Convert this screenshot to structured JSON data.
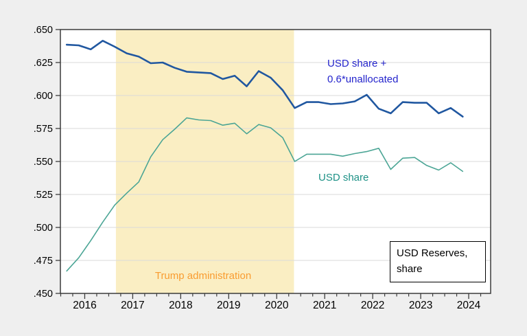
{
  "chart_data": {
    "type": "line",
    "x_axis": {
      "tick_labels": [
        "2016",
        "2017",
        "2018",
        "2019",
        "2020",
        "2021",
        "2022",
        "2023",
        "2024"
      ],
      "tick_values": [
        2016,
        2017,
        2018,
        2019,
        2020,
        2021,
        2022,
        2023,
        2024
      ],
      "minor_tick_step_years": 0.25,
      "xlim": [
        2015.493,
        2024.457
      ]
    },
    "y_axis": {
      "tick_labels": [
        ".450",
        ".475",
        ".500",
        ".525",
        ".550",
        ".575",
        ".600",
        ".625",
        ".650"
      ],
      "tick_values": [
        0.45,
        0.475,
        0.5,
        0.525,
        0.55,
        0.575,
        0.6,
        0.625,
        0.65
      ],
      "ylim": [
        0.45,
        0.65
      ]
    },
    "grid": true,
    "legend_position": "inline-annotations",
    "quarters": [
      "2015Q3",
      "2015Q4",
      "2016Q1",
      "2016Q2",
      "2016Q3",
      "2016Q4",
      "2017Q1",
      "2017Q2",
      "2017Q3",
      "2017Q4",
      "2018Q1",
      "2018Q2",
      "2018Q3",
      "2018Q4",
      "2019Q1",
      "2019Q2",
      "2019Q3",
      "2019Q4",
      "2020Q1",
      "2020Q2",
      "2020Q3",
      "2020Q4",
      "2021Q1",
      "2021Q2",
      "2021Q3",
      "2021Q4",
      "2022Q1",
      "2022Q2",
      "2022Q3",
      "2022Q4",
      "2023Q1",
      "2023Q2",
      "2023Q3",
      "2023Q4"
    ],
    "series": [
      {
        "name": "USD share + 0.6*unallocated",
        "label_lines": [
          "USD share +",
          "0.6*unallocated"
        ],
        "color": "#2057a0",
        "label_color": "#2424cc",
        "line_width": 2.6,
        "values": [
          0.6385,
          0.638,
          0.635,
          0.6415,
          0.637,
          0.632,
          0.6295,
          0.6245,
          0.625,
          0.621,
          0.618,
          0.6175,
          0.617,
          0.6125,
          0.615,
          0.607,
          0.6185,
          0.6135,
          0.604,
          0.5905,
          0.595,
          0.595,
          0.5935,
          0.594,
          0.5955,
          0.6005,
          0.59,
          0.5865,
          0.595,
          0.5945,
          0.5945,
          0.5865,
          0.5905,
          0.584
        ]
      },
      {
        "name": "USD share",
        "label_lines": [
          "USD share"
        ],
        "color": "#4ba595",
        "label_color": "#1d9186",
        "line_width": 1.6,
        "values": [
          0.467,
          0.477,
          0.49,
          0.504,
          0.517,
          0.526,
          0.5345,
          0.5535,
          0.5665,
          0.5745,
          0.583,
          0.5815,
          0.581,
          0.5775,
          0.579,
          0.571,
          0.578,
          0.5755,
          0.568,
          0.55,
          0.5555,
          0.5555,
          0.5555,
          0.554,
          0.556,
          0.5575,
          0.56,
          0.544,
          0.5525,
          0.553,
          0.547,
          0.5435,
          0.549,
          0.5425
        ]
      }
    ],
    "shaded_region": {
      "label": "Trump administration",
      "start": 2016.65,
      "end": 2020.36,
      "fill": "#faeec3",
      "label_color": "#f99c30"
    },
    "title_box": {
      "line1": "USD Reserves,",
      "line2": "share"
    },
    "colors": {
      "background": "#efefef",
      "plot_background": "#ffffff",
      "gridline": "#d9d9d9",
      "axis": "#3b3b3b",
      "tick_label": "#000000"
    }
  }
}
